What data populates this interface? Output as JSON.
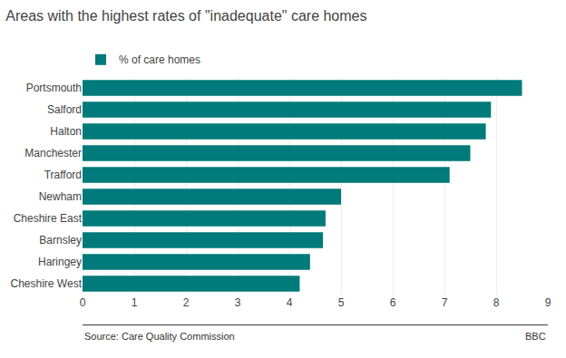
{
  "chart_data": {
    "type": "bar",
    "orientation": "horizontal",
    "title": "Areas with the highest rates of \"inadequate\" care homes",
    "categories": [
      "Cheshire West",
      "Haringey",
      "Barnsley",
      "Cheshire East",
      "Newham",
      "Trafford",
      "Manchester",
      "Halton",
      "Salford",
      "Portsmouth"
    ],
    "series": [
      {
        "name": "% of care homes",
        "color": "#007a7a",
        "values": [
          4.2,
          4.4,
          4.65,
          4.7,
          5.0,
          7.1,
          7.5,
          7.8,
          7.9,
          8.5
        ]
      }
    ],
    "xlim": [
      0,
      9
    ],
    "xticks": [
      0,
      1,
      2,
      3,
      4,
      5,
      6,
      7,
      8,
      9
    ],
    "grid": true,
    "legend": "top left",
    "annotations": [
      "Source: Care Quality Commission",
      "BBC"
    ]
  }
}
